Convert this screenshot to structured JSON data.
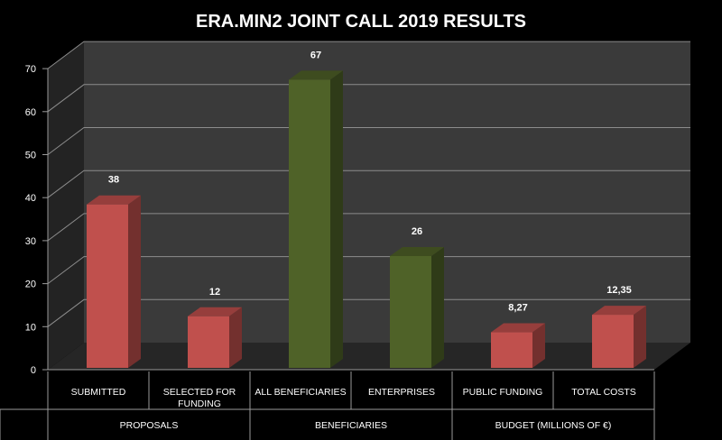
{
  "chart_data": {
    "type": "bar",
    "title": "ERA.MIN2 JOINT CALL 2019 RESULTS",
    "categories": [
      "SUBMITTED",
      "SELECTED FOR FUNDING",
      "ALL BENEFICIARIES",
      "ENTERPRISES",
      "PUBLIC FUNDING",
      "TOTAL COSTS"
    ],
    "values": [
      38,
      12,
      67,
      26,
      8.27,
      12.35
    ],
    "data_labels": [
      "38",
      "12",
      "67",
      "26",
      "8,27",
      "12,35"
    ],
    "groups": [
      {
        "label": "PROPOSALS",
        "categories": [
          "SUBMITTED",
          "SELECTED FOR FUNDING"
        ]
      },
      {
        "label": "BENEFICIARIES",
        "categories": [
          "ALL BENEFICIARIES",
          "ENTERPRISES"
        ]
      },
      {
        "label": "BUDGET (MILLIONS OF €)",
        "categories": [
          "PUBLIC FUNDING",
          "TOTAL COSTS"
        ]
      }
    ],
    "bar_colors": [
      "#c0504d",
      "#c0504d",
      "#4f6228",
      "#4f6228",
      "#c0504d",
      "#c0504d"
    ],
    "ylim": [
      0,
      70
    ],
    "yticks": [
      0,
      10,
      20,
      30,
      40,
      50,
      60,
      70
    ],
    "grid": true,
    "three_d": true,
    "colors": {
      "background": "#000000",
      "wall": "#3a3a3a",
      "floor": "#262626",
      "gridline": "#8c8c8c",
      "text": "#ffffff"
    }
  }
}
